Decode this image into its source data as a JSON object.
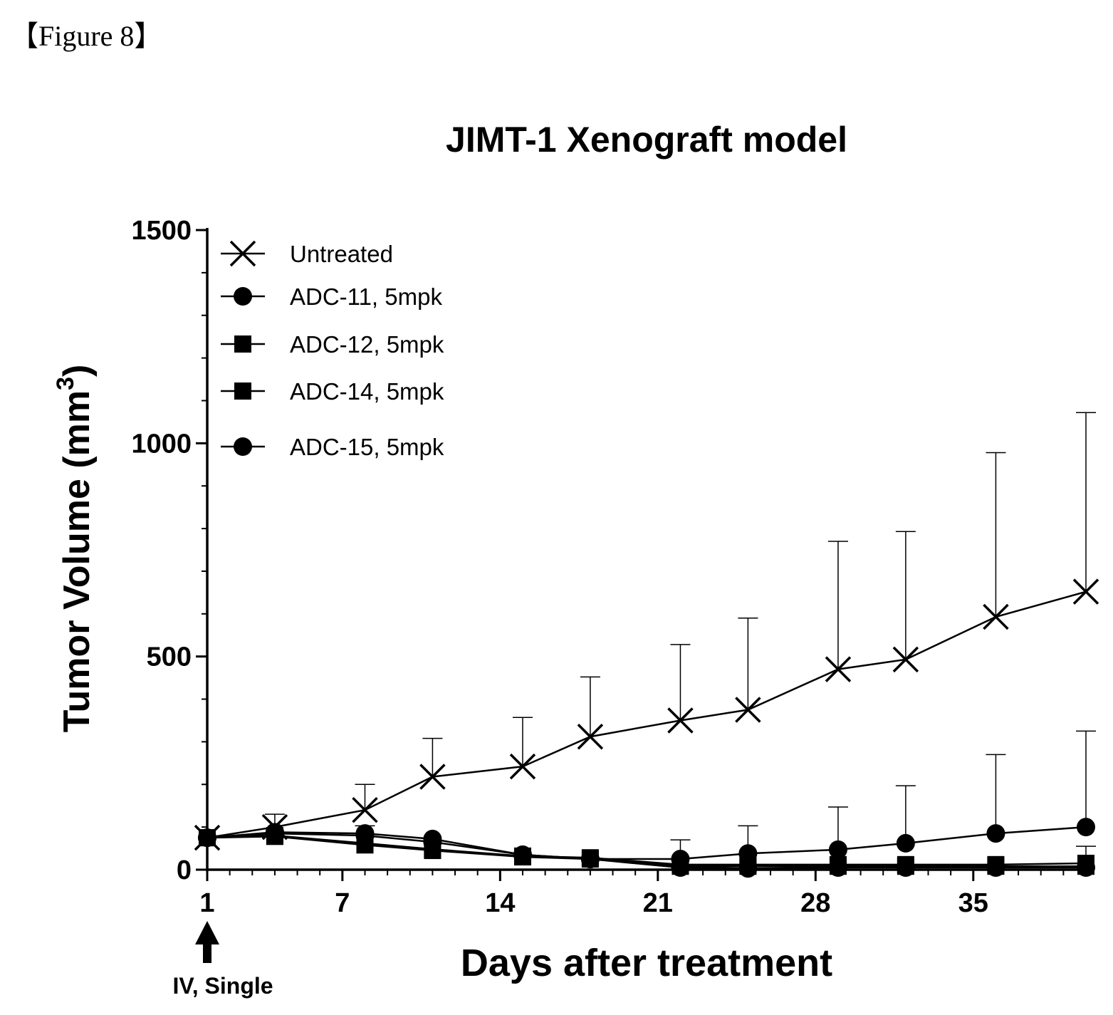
{
  "figure_label": "【Figure 8】",
  "annotation": {
    "text": "IV, Single",
    "at_day": 1
  },
  "chart_data": {
    "type": "line",
    "title": "JIMT-1 Xenograft model",
    "xlabel": "Days after treatment",
    "ylabel": "Tumor Volume (mm",
    "ylabel_superscript": "3",
    "ylabel_suffix": ")",
    "xlim": [
      1,
      40
    ],
    "ylim": [
      0,
      1500
    ],
    "xticks": [
      1,
      7,
      14,
      21,
      28,
      35
    ],
    "yticks": [
      0,
      500,
      1000,
      1500
    ],
    "legend_position": "top-left",
    "series": [
      {
        "name": "Untreated",
        "marker": "x",
        "x": [
          1,
          4,
          8,
          11,
          15,
          18,
          22,
          25,
          29,
          32,
          36,
          40
        ],
        "y": [
          75,
          100,
          140,
          218,
          242,
          312,
          350,
          375,
          470,
          493,
          593,
          652
        ],
        "err": [
          0,
          30,
          60,
          90,
          115,
          140,
          178,
          215,
          300,
          300,
          385,
          420
        ]
      },
      {
        "name": "ADC-11,  5mpk",
        "marker": "circle",
        "x": [
          1,
          4,
          8,
          11,
          15,
          18,
          22,
          25,
          29,
          32,
          36,
          40
        ],
        "y": [
          75,
          88,
          85,
          72,
          35,
          25,
          25,
          38,
          47,
          62,
          85,
          100
        ],
        "err": [
          0,
          0,
          18,
          0,
          0,
          0,
          45,
          65,
          100,
          135,
          185,
          225
        ]
      },
      {
        "name": "ADC-12,  5mpk",
        "marker": "square",
        "x": [
          1,
          4,
          8,
          11,
          15,
          18,
          22,
          25,
          29,
          32,
          36,
          40
        ],
        "y": [
          75,
          80,
          62,
          48,
          32,
          28,
          12,
          12,
          12,
          12,
          12,
          15
        ],
        "err": [
          0,
          0,
          0,
          0,
          0,
          0,
          0,
          0,
          0,
          0,
          0,
          40
        ]
      },
      {
        "name": "ADC-14,  5mpk",
        "marker": "square",
        "x": [
          1,
          4,
          8,
          11,
          15,
          18,
          22,
          25,
          29,
          32,
          36,
          40
        ],
        "y": [
          75,
          78,
          58,
          45,
          30,
          25,
          8,
          8,
          8,
          8,
          8,
          8
        ],
        "err": [
          0,
          0,
          0,
          0,
          0,
          0,
          0,
          0,
          0,
          0,
          0,
          0
        ]
      },
      {
        "name": "ADC-15,  5mpk",
        "marker": "circle",
        "x": [
          1,
          4,
          8,
          11,
          15,
          18,
          22,
          25,
          29,
          32,
          36,
          40
        ],
        "y": [
          75,
          85,
          80,
          65,
          35,
          25,
          5,
          3,
          5,
          5,
          5,
          5
        ],
        "err": [
          0,
          0,
          0,
          0,
          0,
          0,
          0,
          0,
          0,
          0,
          0,
          0
        ]
      }
    ]
  }
}
